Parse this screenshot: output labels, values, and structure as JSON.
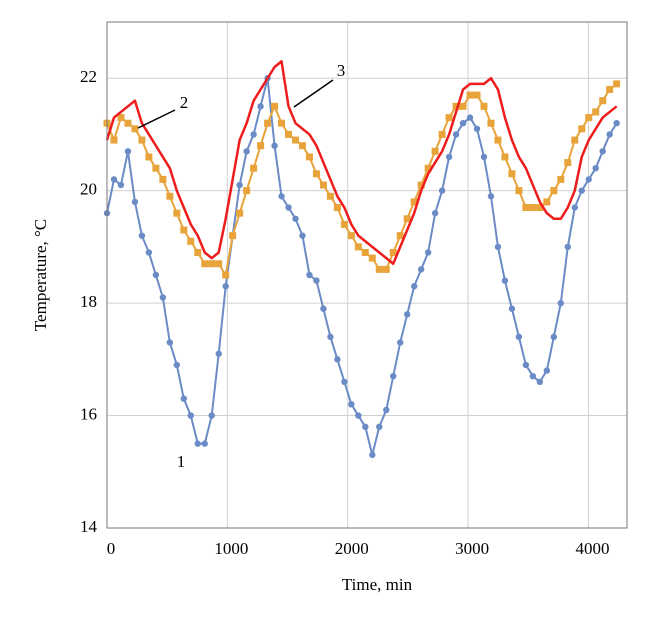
{
  "chart_data": {
    "type": "line",
    "x_label": "Time, min",
    "y_label": "Temperature, °C",
    "x": [
      0,
      58,
      116,
      174,
      232,
      290,
      348,
      406,
      464,
      522,
      580,
      638,
      696,
      754,
      812,
      870,
      928,
      986,
      1044,
      1102,
      1160,
      1218,
      1276,
      1334,
      1392,
      1450,
      1508,
      1566,
      1624,
      1682,
      1740,
      1798,
      1856,
      1914,
      1972,
      2030,
      2088,
      2146,
      2204,
      2262,
      2320,
      2378,
      2436,
      2494,
      2552,
      2610,
      2668,
      2726,
      2784,
      2842,
      2900,
      2958,
      3016,
      3074,
      3132,
      3190,
      3248,
      3306,
      3364,
      3422,
      3480,
      3538,
      3596,
      3654,
      3712,
      3770,
      3828,
      3886,
      3944,
      4002,
      4060,
      4118,
      4176,
      4234
    ],
    "series": [
      {
        "color": "#6b8bc6",
        "marker": "circle",
        "values": [
          19.6,
          20.2,
          20.1,
          20.7,
          19.8,
          19.2,
          18.9,
          18.5,
          18.1,
          17.3,
          16.9,
          16.3,
          16.0,
          15.5,
          15.5,
          16.0,
          17.1,
          18.3,
          19.2,
          20.1,
          20.7,
          21.0,
          21.5,
          22.0,
          20.8,
          19.9,
          19.7,
          19.5,
          19.2,
          18.5,
          18.4,
          17.9,
          17.4,
          17.0,
          16.6,
          16.2,
          16.0,
          15.8,
          15.3,
          15.8,
          16.1,
          16.7,
          17.3,
          17.8,
          18.3,
          18.6,
          18.9,
          19.6,
          20.0,
          20.6,
          21.0,
          21.2,
          21.3,
          21.1,
          20.6,
          19.9,
          19.0,
          18.4,
          17.9,
          17.4,
          16.9,
          16.7,
          16.6,
          16.8,
          17.4,
          18.0,
          19.0,
          19.7,
          20.0,
          20.2,
          20.4,
          20.7,
          21.0,
          21.2
        ]
      },
      {
        "color": "#e8a43a",
        "marker": "square",
        "values": [
          21.2,
          20.9,
          21.3,
          21.2,
          21.1,
          20.9,
          20.6,
          20.4,
          20.2,
          19.9,
          19.6,
          19.3,
          19.1,
          18.9,
          18.7,
          18.7,
          18.7,
          18.5,
          19.2,
          19.6,
          20.0,
          20.4,
          20.8,
          21.2,
          21.5,
          21.2,
          21.0,
          20.9,
          20.8,
          20.6,
          20.3,
          20.1,
          19.9,
          19.7,
          19.4,
          19.2,
          19.0,
          18.9,
          18.8,
          18.6,
          18.6,
          18.9,
          19.2,
          19.5,
          19.8,
          20.1,
          20.4,
          20.7,
          21.0,
          21.3,
          21.5,
          21.5,
          21.7,
          21.7,
          21.5,
          21.2,
          20.9,
          20.6,
          20.3,
          20.0,
          19.7,
          19.7,
          19.7,
          19.8,
          20.0,
          20.2,
          20.5,
          20.9,
          21.1,
          21.3,
          21.4,
          21.6,
          21.8,
          21.9
        ]
      },
      {
        "color": "#ee1c1c",
        "marker": "none",
        "values": [
          20.9,
          21.3,
          21.4,
          21.5,
          21.6,
          21.2,
          21.0,
          20.8,
          20.6,
          20.4,
          20.0,
          19.7,
          19.4,
          19.2,
          18.9,
          18.8,
          18.9,
          19.5,
          20.2,
          20.9,
          21.2,
          21.6,
          21.8,
          22.0,
          22.2,
          22.3,
          21.5,
          21.2,
          21.1,
          21.0,
          20.8,
          20.5,
          20.2,
          19.9,
          19.7,
          19.4,
          19.2,
          19.1,
          19.0,
          18.9,
          18.8,
          18.7,
          19.0,
          19.3,
          19.6,
          20.0,
          20.3,
          20.5,
          20.7,
          21.0,
          21.4,
          21.8,
          21.9,
          21.9,
          21.9,
          22.0,
          21.8,
          21.3,
          20.9,
          20.6,
          20.4,
          20.1,
          19.8,
          19.6,
          19.5,
          19.5,
          19.7,
          20.0,
          20.6,
          20.9,
          21.1,
          21.3,
          21.4,
          21.5
        ]
      }
    ],
    "annotations": [
      {
        "text": "1"
      },
      {
        "text": "2"
      },
      {
        "text": "3"
      }
    ],
    "xlim": [
      0,
      4320
    ],
    "xticks": [
      0,
      1000,
      2000,
      3000,
      4000
    ],
    "ylim": [
      14,
      23
    ],
    "yticks": [
      14,
      16,
      18,
      20,
      22
    ],
    "grid": true
  }
}
